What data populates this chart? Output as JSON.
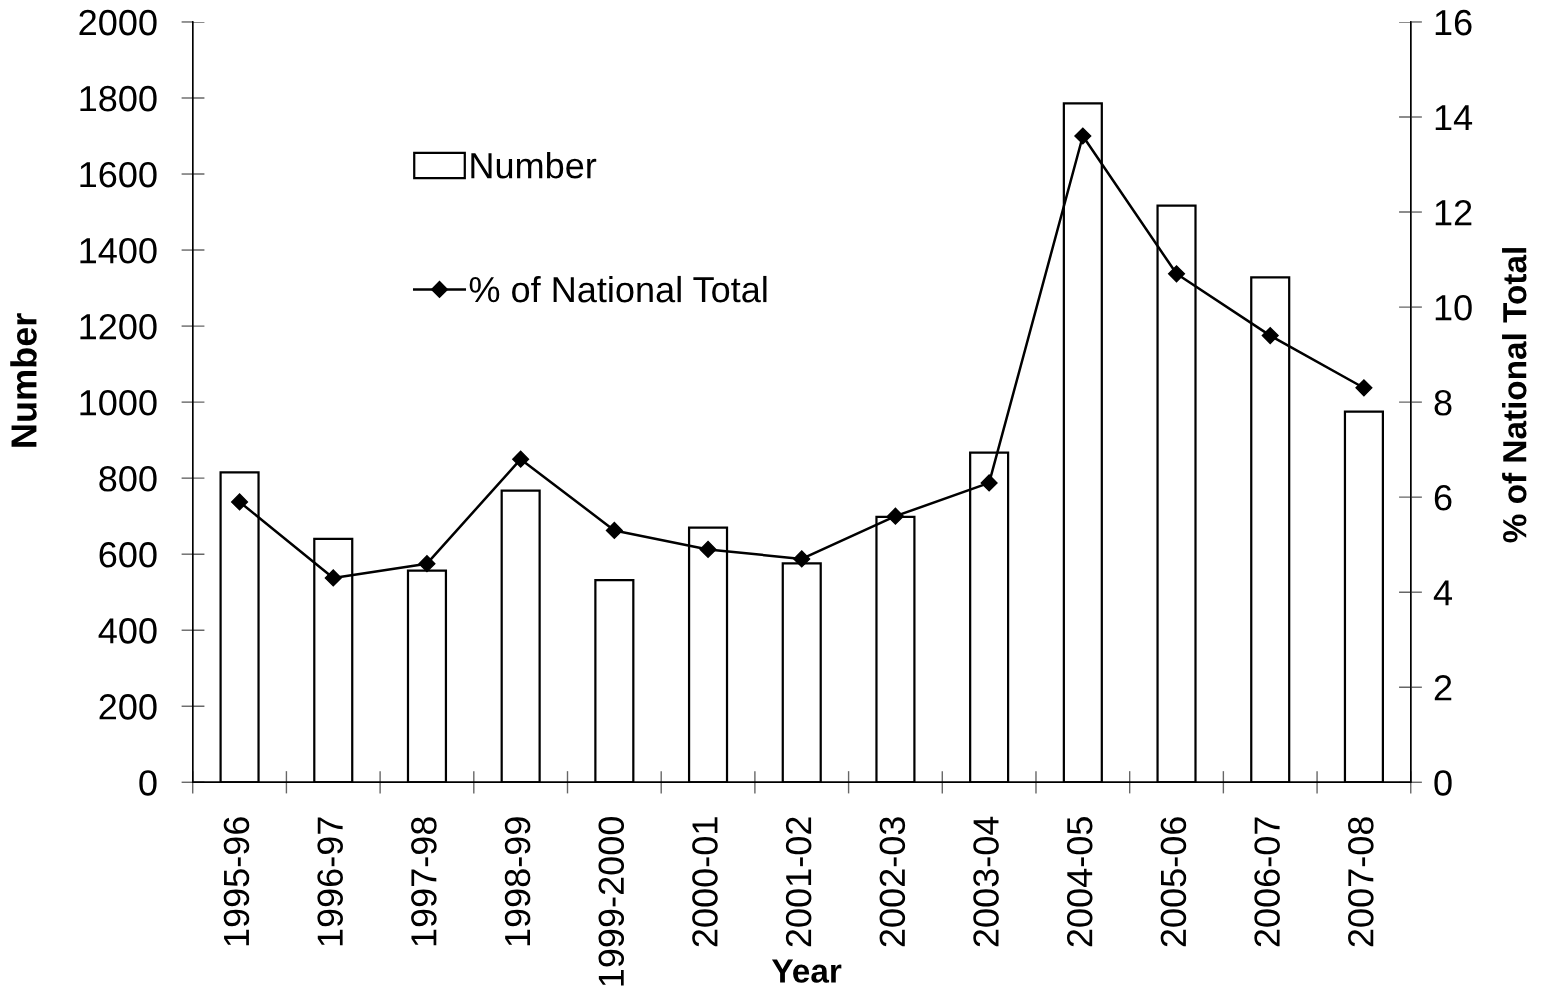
{
  "chart_data": {
    "type": "bar",
    "xlabel": "Year",
    "ylabel": "Number",
    "y2label": "% of National Total",
    "categories": [
      "1995-96",
      "1996-97",
      "1997-98",
      "1998-99",
      "1999-2000",
      "2000-01",
      "2001-02",
      "2002-03",
      "2003-04",
      "2004-05",
      "2005-06",
      "2006-07",
      "2007-08"
    ],
    "series": [
      {
        "name": "Number",
        "color": "#ffffff",
        "values": [
          815,
          640,
          557,
          767,
          532,
          670,
          576,
          698,
          867,
          1786,
          1517,
          1328,
          975
        ]
      },
      {
        "name": "% of National Total",
        "type": "line",
        "axis": "y2",
        "color": "#000000",
        "values": [
          5.9,
          4.3,
          4.6,
          6.8,
          5.3,
          4.9,
          4.7,
          5.6,
          6.3,
          13.6,
          10.7,
          9.4,
          8.3
        ]
      }
    ],
    "ylim": [
      0,
      2000
    ],
    "yticks": [
      0,
      200,
      400,
      600,
      800,
      1000,
      1200,
      1400,
      1600,
      1800,
      2000
    ],
    "y2lim": [
      0,
      16
    ],
    "y2ticks": [
      0,
      2,
      4,
      6,
      8,
      10,
      12,
      14,
      16
    ],
    "legend": "top left",
    "grid": false,
    "marker": "diamond",
    "line_style": "solid"
  }
}
